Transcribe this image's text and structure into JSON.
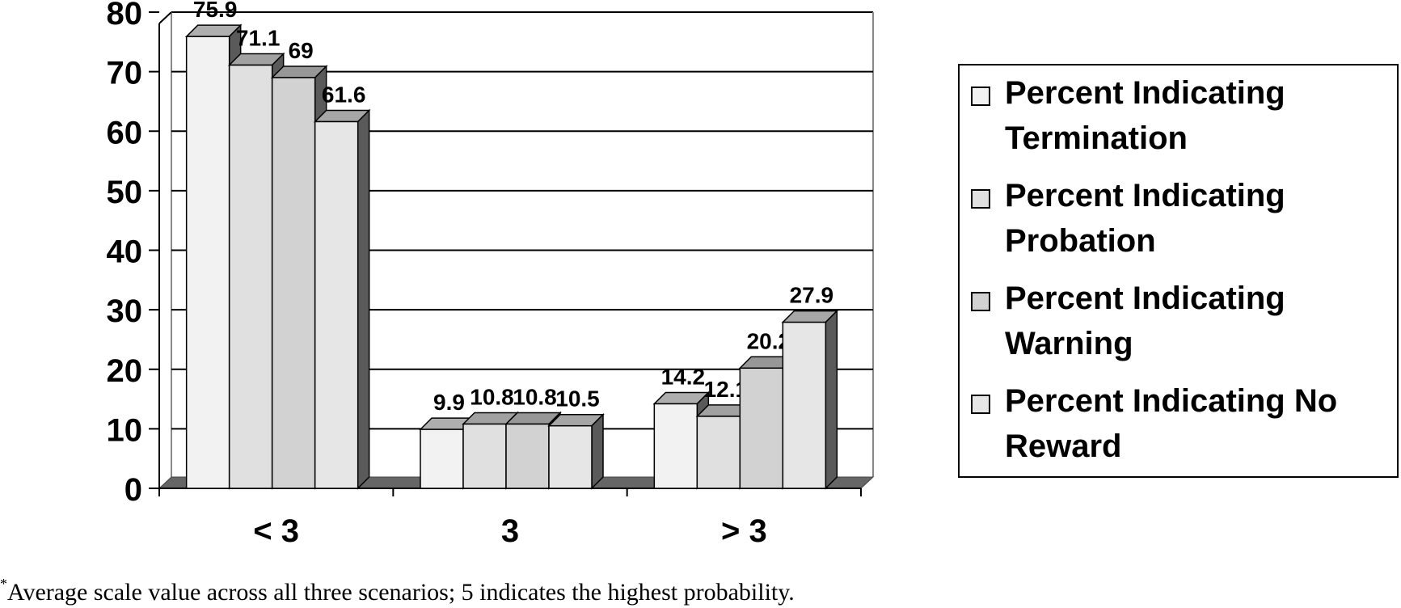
{
  "chart_data": {
    "type": "bar",
    "categories": [
      "< 3",
      "3",
      "> 3"
    ],
    "series": [
      {
        "name": "Percent Indicating Termination",
        "values": [
          75.9,
          9.9,
          14.2
        ],
        "color": "#f2f2f2"
      },
      {
        "name": "Percent Indicating Probation",
        "values": [
          71.1,
          10.8,
          12.1
        ],
        "color": "#e0e0e0"
      },
      {
        "name": "Percent Indicating Warning",
        "values": [
          69,
          10.8,
          20.2
        ],
        "color": "#d2d2d2"
      },
      {
        "name": "Percent Indicating No Reward",
        "values": [
          61.6,
          10.5,
          27.9
        ],
        "color": "#e6e6e6"
      }
    ],
    "data_labels": [
      [
        "75.9",
        "9.9",
        "14.2"
      ],
      [
        "71.1",
        "10.8",
        "12.1"
      ],
      [
        "69",
        "10.8",
        "20.2"
      ],
      [
        "61.6",
        "10.5",
        "27.9"
      ]
    ],
    "yticks": [
      "0",
      "10",
      "20",
      "30",
      "40",
      "50",
      "60",
      "70",
      "80"
    ],
    "ylim": [
      0,
      80
    ],
    "grid": true,
    "legend_position": "right",
    "style": "3d-bar"
  },
  "legend": [
    {
      "line1": "Percent Indicating",
      "line2": "Termination"
    },
    {
      "line1": "Percent Indicating",
      "line2": "Probation"
    },
    {
      "line1": "Percent Indicating",
      "line2": "Warning"
    },
    {
      "line1": "Percent Indicating No",
      "line2": "Reward"
    }
  ],
  "footnote": {
    "marker": "*",
    "text": "Average scale value across all three scenarios; 5 indicates the highest probability."
  }
}
